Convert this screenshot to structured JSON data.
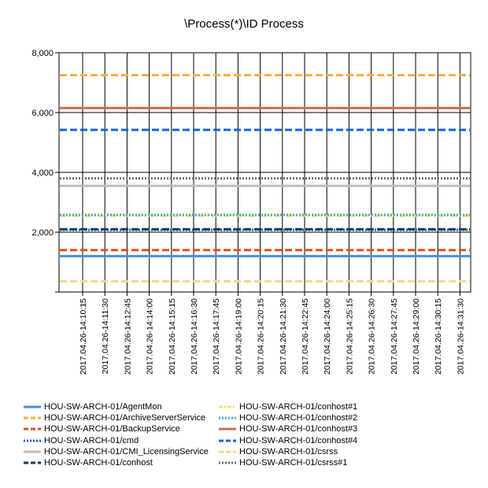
{
  "chart_data": {
    "type": "line",
    "title": "\\Process(*)\\ID Process",
    "xlabel": "",
    "ylabel": "",
    "ylim": [
      0,
      8000
    ],
    "y_ticks": [
      {
        "value": 0,
        "label": ""
      },
      {
        "value": 2000,
        "label": "2,000"
      },
      {
        "value": 4000,
        "label": "4,000"
      },
      {
        "value": 6000,
        "label": "6,000"
      },
      {
        "value": 8000,
        "label": "8,000"
      }
    ],
    "categories": [
      "2017.04.26-14:10:15",
      "2017.04.26-14:11:30",
      "2017.04.26-14:12:45",
      "2017.04.26-14:14:00",
      "2017.04.26-14:15:15",
      "2017.04.26-14:16:30",
      "2017.04.26-14:17:45",
      "2017.04.26-14:19:00",
      "2017.04.26-14:20:15",
      "2017.04.26-14:21:30",
      "2017.04.26-14:22:45",
      "2017.04.26-14:24:00",
      "2017.04.26-14:25:15",
      "2017.04.26-14:26:30",
      "2017.04.26-14:27:45",
      "2017.04.26-14:29:00",
      "2017.04.26-14:30:15",
      "2017.04.26-14:31:30"
    ],
    "grid": true,
    "legend_position": "bottom",
    "series": [
      {
        "name": "HOU-SW-ARCH-01/AgentMon",
        "value": 1200,
        "color": "#4a90e2",
        "dash": "solid"
      },
      {
        "name": "HOU-SW-ARCH-01/ArchiveServerService",
        "value": 7250,
        "color": "#f5b041",
        "dash": "dashed"
      },
      {
        "name": "HOU-SW-ARCH-01/BackupService",
        "value": 1400,
        "color": "#e0501b",
        "dash": "dashed"
      },
      {
        "name": "HOU-SW-ARCH-01/cmd",
        "value": 2080,
        "color": "#1f5fa8",
        "dash": "dotted"
      },
      {
        "name": "HOU-SW-ARCH-01/CMI_LicensingService",
        "value": 3550,
        "color": "#bdbdbd",
        "dash": "solid"
      },
      {
        "name": "HOU-SW-ARCH-01/conhost",
        "value": 2100,
        "color": "#1a3a5c",
        "dash": "dashed"
      },
      {
        "name": "HOU-SW-ARCH-01/conhost#1",
        "value": 2550,
        "color": "#f7dc6f",
        "dash": "dashdot"
      },
      {
        "name": "HOU-SW-ARCH-01/conhost#2",
        "value": 2580,
        "color": "#48a9c5",
        "dash": "dotted"
      },
      {
        "name": "HOU-SW-ARCH-01/conhost#3",
        "value": 6150,
        "color": "#c0704b",
        "dash": "solid"
      },
      {
        "name": "HOU-SW-ARCH-01/conhost#4",
        "value": 5420,
        "color": "#1565d8",
        "dash": "dashed"
      },
      {
        "name": "HOU-SW-ARCH-01/csrss",
        "value": 360,
        "color": "#f5d98a",
        "dash": "dashed"
      },
      {
        "name": "HOU-SW-ARCH-01/csrss#1",
        "value": 3800,
        "color": "#6b6b7b",
        "dash": "dotted"
      }
    ]
  }
}
